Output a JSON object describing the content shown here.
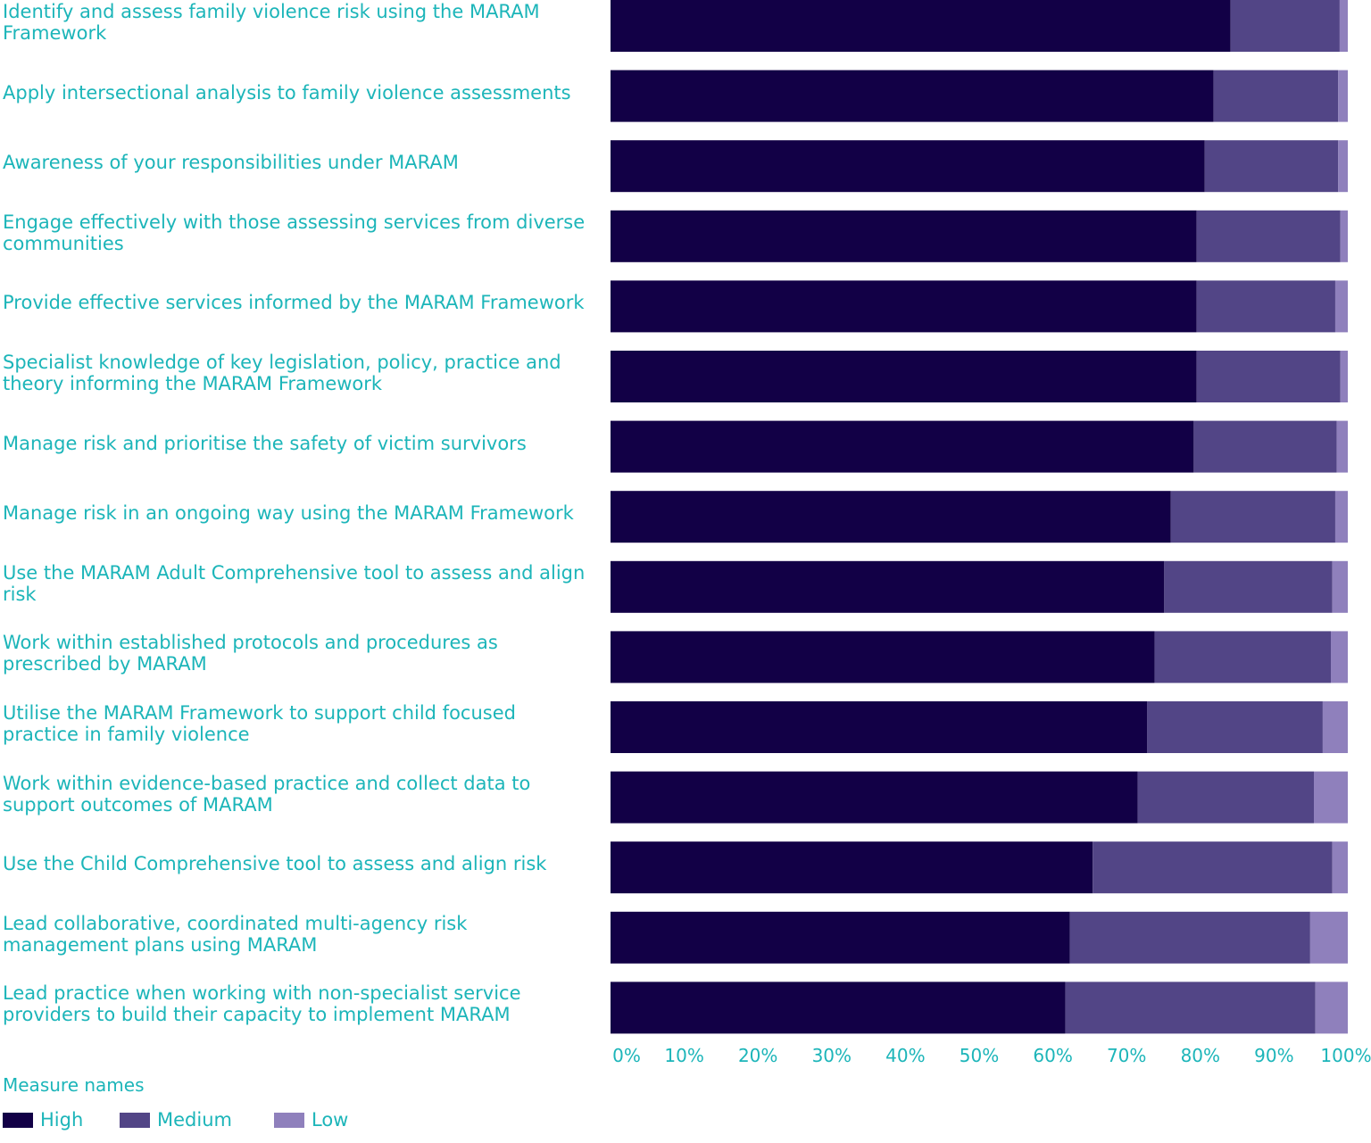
{
  "chart_data": {
    "type": "bar",
    "orientation": "horizontal",
    "stacked": true,
    "categories": [
      "Identify and assess family violence risk using the MARAM Framework",
      "Apply intersectional analysis to family violence assessments",
      "Awareness of your responsibilities under MARAM",
      "Engage effectively with those assessing services from diverse communities",
      "Provide effective services informed by the MARAM Framework",
      "Specialist knowledge of key legislation, policy, practice and theory informing the MARAM Framework",
      "Manage risk and prioritise the safety of victim survivors",
      "Manage risk in an ongoing way using the MARAM Framework",
      "Use the MARAM Adult Comprehensive tool to assess and align risk",
      "Work within established protocols and procedures as prescribed by MARAM",
      "Utilise the MARAM Framework to support child focused practice in family violence",
      "Work within evidence-based practice and collect data to support outcomes of MARAM",
      "Use the Child Comprehensive tool to assess and align risk",
      "Lead collaborative, coordinated multi-agency risk management plans using MARAM",
      "Lead practice when working with non-specialist service providers to build their capacity to implement MARAM"
    ],
    "series": [
      {
        "name": "High",
        "color": "#120046",
        "values": [
          84.1,
          81.8,
          80.6,
          79.5,
          79.5,
          79.5,
          79.1,
          76.0,
          75.1,
          73.8,
          72.8,
          71.5,
          65.4,
          62.3,
          61.7
        ]
      },
      {
        "name": "Medium",
        "color": "#524586",
        "values": [
          14.8,
          16.9,
          18.1,
          19.5,
          18.8,
          19.5,
          19.4,
          22.3,
          22.8,
          23.9,
          23.8,
          23.9,
          32.5,
          32.6,
          33.9
        ]
      },
      {
        "name": "Low",
        "color": "#8f80bc",
        "values": [
          1.1,
          1.3,
          1.3,
          1.0,
          1.7,
          1.0,
          1.5,
          1.7,
          2.1,
          2.3,
          3.4,
          4.6,
          2.1,
          5.1,
          4.4
        ]
      }
    ],
    "xlim": [
      0,
      100
    ],
    "xticks": [
      "0%",
      "10%",
      "20%",
      "30%",
      "40%",
      "50%",
      "60%",
      "70%",
      "80%",
      "90%",
      "100%"
    ],
    "legend_title": "Measure names",
    "legend_position": "bottom-left",
    "grid": false
  }
}
